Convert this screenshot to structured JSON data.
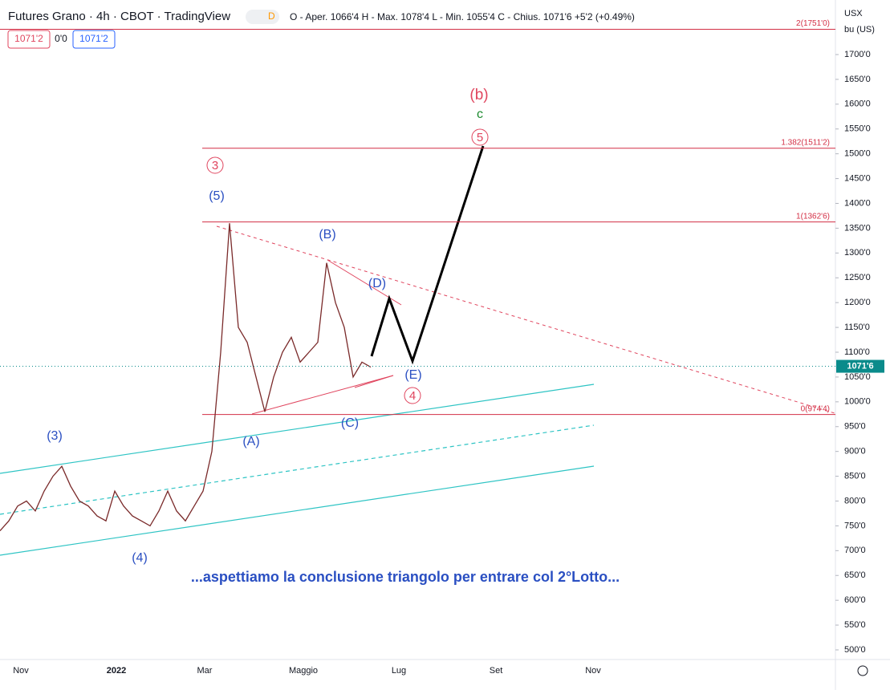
{
  "header": {
    "title": "Futures Grano · 4h · CBOT · TradingView",
    "badge": "D",
    "ohlc": "O - Aper. 1066'4  H - Max. 1078'4  L - Min. 1055'4  C - Chius. 1071'6 +5'2 (+0.49%)",
    "boxes": [
      "1071'2",
      "0'0",
      "1071'2"
    ]
  },
  "price_axis": {
    "unit": "USX",
    "subunit": "bu (US)",
    "last": {
      "value": 1071.6,
      "label": "1071'6"
    },
    "ylim": [
      500,
      1700
    ],
    "yticks": [
      {
        "value": 1700,
        "label": "1700'0"
      },
      {
        "value": 1650,
        "label": "1650'0"
      },
      {
        "value": 1600,
        "label": "1600'0"
      },
      {
        "value": 1550,
        "label": "1550'0"
      },
      {
        "value": 1500,
        "label": "1500'0"
      },
      {
        "value": 1450,
        "label": "1450'0"
      },
      {
        "value": 1400,
        "label": "1400'0"
      },
      {
        "value": 1350,
        "label": "1350'0"
      },
      {
        "value": 1300,
        "label": "1300'0"
      },
      {
        "value": 1250,
        "label": "1250'0"
      },
      {
        "value": 1200,
        "label": "1200'0"
      },
      {
        "value": 1150,
        "label": "1150'0"
      },
      {
        "value": 1100,
        "label": "1100'0"
      },
      {
        "value": 1050,
        "label": "1050'0"
      },
      {
        "value": 1000,
        "label": "1000'0"
      },
      {
        "value": 950,
        "label": "950'0"
      },
      {
        "value": 900,
        "label": "900'0"
      },
      {
        "value": 850,
        "label": "850'0"
      },
      {
        "value": 800,
        "label": "800'0"
      },
      {
        "value": 750,
        "label": "750'0"
      },
      {
        "value": 700,
        "label": "700'0"
      },
      {
        "value": 650,
        "label": "650'0"
      },
      {
        "value": 600,
        "label": "600'0"
      },
      {
        "value": 550,
        "label": "550'0"
      },
      {
        "value": 500,
        "label": "500'0"
      }
    ]
  },
  "time_axis": [
    "Nov",
    "2022",
    "Mar",
    "Maggio",
    "Lug",
    "Set",
    "Nov"
  ],
  "price": [
    740,
    760,
    790,
    800,
    780,
    820,
    850,
    870,
    830,
    800,
    790,
    770,
    760,
    820,
    790,
    770,
    760,
    750,
    780,
    820,
    780,
    760,
    790,
    820,
    900,
    1100,
    1360,
    1150,
    1120,
    1050,
    980,
    1050,
    1100,
    1130,
    1080,
    1100,
    1120,
    1280,
    1200,
    1150,
    1050,
    1080,
    1070
  ],
  "fibs": [
    {
      "label": "2(1751'0)",
      "value": 1751
    },
    {
      "label": "1.382(1511'2)",
      "value": 1511.2
    },
    {
      "label": "1(1362'6)",
      "value": 1362.6
    },
    {
      "label": "0(974'4)",
      "value": 974.4
    }
  ],
  "waves": [
    "(b)",
    "c",
    "5",
    "3",
    "(5)",
    "(B)",
    "(D)",
    "(E)",
    "4",
    "(C)",
    "(A)",
    "(3)",
    "(4)"
  ],
  "caption": "...aspettiamo la conclusione triangolo per entrare col 2°Lotto..."
}
